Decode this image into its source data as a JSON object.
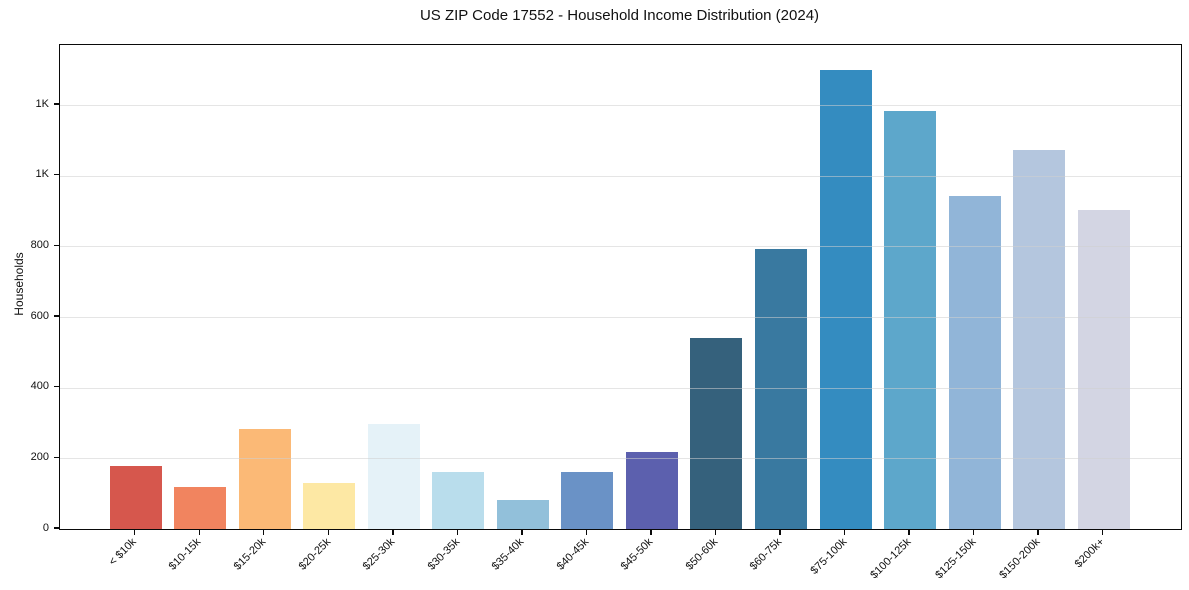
{
  "chart_data": {
    "type": "bar",
    "title": "US ZIP Code 17552 - Household Income Distribution (2024)",
    "xlabel": "",
    "ylabel": "Households",
    "categories": [
      "< $10k",
      "$10-15k",
      "$15-20k",
      "$20-25k",
      "$25-30k",
      "$30-35k",
      "$35-40k",
      "$40-45k",
      "$45-50k",
      "$50-60k",
      "$60-75k",
      "$75-100k",
      "$100-125k",
      "$125-150k",
      "$150-200k",
      "$200k+"
    ],
    "values": [
      178,
      120,
      283,
      130,
      297,
      160,
      82,
      162,
      217,
      542,
      794,
      1300,
      1183,
      943,
      1074,
      903
    ],
    "bar_colors": [
      "#d6574d",
      "#f1845f",
      "#fbb976",
      "#fde8a4",
      "#e5f2f8",
      "#b9ddec",
      "#92c0da",
      "#6a92c6",
      "#5c60ae",
      "#35617c",
      "#3979a0",
      "#348cc0",
      "#5da7cb",
      "#91b5d8",
      "#b4c6de",
      "#d3d5e3"
    ],
    "ylim": [
      0,
      1370
    ],
    "yticks": {
      "values": [
        0,
        200,
        400,
        600,
        800,
        1000,
        1200
      ],
      "labels": [
        "0",
        "200",
        "400",
        "600",
        "800",
        "1K",
        "1K"
      ]
    },
    "grid": "horizontal-over-bars",
    "legend": "none",
    "axis_color": "#0a0a0a",
    "grid_color": "#e6e6e6"
  }
}
